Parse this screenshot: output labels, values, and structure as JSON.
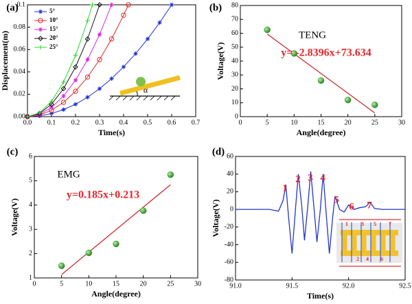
{
  "chart_data": [
    {
      "type": "line",
      "panel_label": "(a)",
      "xlabel": "Time(s)",
      "ylabel": "Displacement(m)",
      "xlim": [
        0,
        0.7
      ],
      "xticks": [
        {
          "value": 0,
          "label": "0.0"
        },
        0.1,
        0.2,
        0.3,
        0.4,
        0.5,
        0.6,
        0.7
      ],
      "ylim": [
        0,
        0.1
      ],
      "yticks": [
        {
          "value": 0,
          "label": "0.00"
        },
        0.02,
        0.04,
        0.06,
        0.08,
        0.1
      ],
      "series": [
        {
          "name": "5°",
          "color": "#1f2fd6",
          "x": [
            0,
            0.05,
            0.1,
            0.15,
            0.2,
            0.25,
            0.3,
            0.35,
            0.4,
            0.45,
            0.5,
            0.55,
            0.6
          ],
          "values": [
            0,
            0.0007,
            0.0028,
            0.0063,
            0.0111,
            0.0174,
            0.025,
            0.034,
            0.0445,
            0.0563,
            0.0695,
            0.0841,
            0.1
          ]
        },
        {
          "name": "10°",
          "color": "#e0282a",
          "x": [
            0,
            0.05,
            0.1,
            0.15,
            0.2,
            0.25,
            0.3,
            0.35,
            0.4,
            0.42
          ],
          "values": [
            0,
            0.0014,
            0.0057,
            0.0128,
            0.0227,
            0.0354,
            0.051,
            0.0695,
            0.0907,
            0.1
          ]
        },
        {
          "name": "15°",
          "color": "#e020e0",
          "x": [
            0,
            0.05,
            0.1,
            0.15,
            0.2,
            0.25,
            0.3,
            0.35
          ],
          "values": [
            0,
            0.002,
            0.0082,
            0.0184,
            0.0326,
            0.051,
            0.0734,
            0.1
          ]
        },
        {
          "name": "20°",
          "color": "#111111",
          "x": [
            0,
            0.05,
            0.1,
            0.15,
            0.2,
            0.25,
            0.3
          ],
          "values": [
            0,
            0.0028,
            0.0111,
            0.025,
            0.0444,
            0.0694,
            0.1
          ]
        },
        {
          "name": "25°",
          "color": "#22dd22",
          "x": [
            0,
            0.05,
            0.1,
            0.15,
            0.2,
            0.25,
            0.27
          ],
          "values": [
            0,
            0.0034,
            0.0137,
            0.0309,
            0.0549,
            0.0858,
            0.1
          ]
        }
      ],
      "annotations": [
        {
          "text": "α",
          "color": "#000000"
        }
      ]
    },
    {
      "type": "scatter",
      "panel_label": "(b)",
      "xlabel": "Angle(degree)",
      "ylabel": "Voltage(V)",
      "xlim": [
        0,
        30
      ],
      "xticks": [
        0,
        5,
        10,
        15,
        20,
        25,
        30
      ],
      "ylim": [
        0,
        80
      ],
      "yticks": [
        0,
        10,
        20,
        30,
        40,
        50,
        60,
        70,
        80
      ],
      "x": [
        5,
        10,
        15,
        20,
        25
      ],
      "values": [
        62.5,
        45.5,
        26,
        12,
        8.5
      ],
      "color": "#2e9e2e",
      "fit_line": {
        "x": [
          5,
          25
        ],
        "values": [
          59.44,
          2.64
        ],
        "color": "#cc2222"
      },
      "annotations": [
        {
          "text": "TENG",
          "color": "#000000"
        },
        {
          "text": "y= -2.8396x+73.634",
          "color": "#e8262a"
        }
      ]
    },
    {
      "type": "scatter",
      "panel_label": "(c)",
      "xlabel": "Angle(degree)",
      "ylabel": "Voltage(V)",
      "xlim": [
        0,
        30
      ],
      "xticks": [
        0,
        5,
        10,
        15,
        20,
        25,
        30
      ],
      "ylim": [
        1,
        6
      ],
      "yticks": [
        1,
        2,
        3,
        4,
        5,
        6
      ],
      "x": [
        5,
        10,
        15,
        20,
        25
      ],
      "values": [
        1.5,
        2.03,
        2.4,
        3.77,
        5.25
      ],
      "color": "#2e9e2e",
      "fit_line": {
        "x": [
          5,
          25
        ],
        "values": [
          1.138,
          4.838
        ],
        "color": "#cc2222"
      },
      "annotations": [
        {
          "text": "EMG",
          "color": "#000000"
        },
        {
          "text": "y=0.185x+0.213",
          "color": "#e8262a"
        }
      ]
    },
    {
      "type": "line",
      "panel_label": "(d)",
      "xlabel": "Time(s)",
      "ylabel": "Voltage(V)",
      "xlim": [
        91,
        92.5
      ],
      "xticks": [
        {
          "value": 91,
          "label": "91.0"
        },
        91.5,
        {
          "value": 92,
          "label": "92.0"
        },
        92.5
      ],
      "ylim": [
        -80,
        60
      ],
      "yticks": [
        -80,
        -60,
        -40,
        -20,
        0,
        20,
        40,
        60
      ],
      "series": [
        {
          "name": "Voltage",
          "color": "#2233cc",
          "x": [
            91,
            91.3,
            91.38,
            91.42,
            91.445,
            91.47,
            91.5,
            91.53,
            91.555,
            91.585,
            91.61,
            91.64,
            91.665,
            91.695,
            91.72,
            91.75,
            91.775,
            91.805,
            91.83,
            91.86,
            91.88,
            91.92,
            91.96,
            92.0,
            92.05,
            92.1,
            92.15,
            92.19,
            92.23,
            92.3,
            92.5
          ],
          "values": [
            0,
            0,
            -2,
            10,
            28,
            -10,
            -50,
            0,
            40,
            5,
            -35,
            5,
            43,
            0,
            -37,
            0,
            40,
            -10,
            -50,
            -8,
            15,
            0,
            -3,
            5,
            0,
            2,
            3,
            8,
            1,
            0,
            0
          ]
        }
      ],
      "annotations": [
        {
          "text": "1",
          "color": "#e8262a"
        },
        {
          "text": "2",
          "color": "#e8262a"
        },
        {
          "text": "3",
          "color": "#e8262a"
        },
        {
          "text": "4",
          "color": "#e8262a"
        },
        {
          "text": "5",
          "color": "#e8262a"
        },
        {
          "text": "6",
          "color": "#e8262a"
        },
        {
          "text": "7",
          "color": "#e8262a"
        }
      ]
    }
  ]
}
